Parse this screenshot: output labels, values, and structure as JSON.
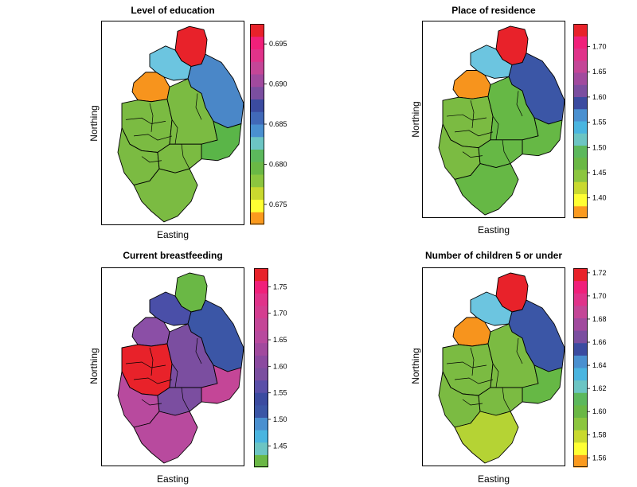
{
  "panels": [
    {
      "title": "Level of education",
      "xlabel": "Easting",
      "ylabel": "Northing",
      "legend": {
        "min": 0.6725,
        "max": 0.6975,
        "ticks": [
          "0.675",
          "0.680",
          "0.685",
          "0.690",
          "0.695"
        ],
        "tick_values": [
          0.675,
          0.68,
          0.685,
          0.69,
          0.695
        ],
        "colors": [
          "#fb9a1e",
          "#ffff33",
          "#c9d92f",
          "#8cc63f",
          "#6ab845",
          "#5cb85c",
          "#6cc5c3",
          "#4a90d0",
          "#4169b8",
          "#3b4ba0",
          "#7b4ea0",
          "#a14a9e",
          "#c44697",
          "#e0338a",
          "#f0207a",
          "#e8222a"
        ]
      },
      "regions": {
        "north": "#e8222a",
        "northwest": "#6cc5e0",
        "west": "#f7941d",
        "east": "#4a87c8",
        "central": "#7bbb42",
        "center_south": "#7bbb42",
        "south": "#7bbb42",
        "southwest": "#7bbb42",
        "southeast": "#5ab548",
        "mid": "#7bbb42"
      }
    },
    {
      "title": "Place of residence",
      "xlabel": "Easting",
      "ylabel": "Northing",
      "legend": {
        "min": 1.36,
        "max": 1.745,
        "ticks": [
          "1.40",
          "1.45",
          "1.50",
          "1.55",
          "1.60",
          "1.65",
          "1.70"
        ],
        "tick_values": [
          1.4,
          1.45,
          1.5,
          1.55,
          1.6,
          1.65,
          1.7
        ],
        "colors": [
          "#fb9a1e",
          "#ffff33",
          "#c9d92f",
          "#8cc63f",
          "#6ab845",
          "#5cb85c",
          "#6cc5c3",
          "#4ab5e0",
          "#4a90d0",
          "#3b4ba0",
          "#7b4ea0",
          "#a14a9e",
          "#c44697",
          "#e0338a",
          "#f0207a",
          "#e8222a"
        ]
      },
      "regions": {
        "north": "#e8222a",
        "northwest": "#6cc5e0",
        "west": "#f7941d",
        "east": "#3b56a6",
        "central": "#7bbb42",
        "center_south": "#66b845",
        "south": "#66b845",
        "southwest": "#7bbb42",
        "southeast": "#66b845",
        "mid": "#66b845"
      }
    },
    {
      "title": "Current breastfeeding",
      "xlabel": "Easting",
      "ylabel": "Northing",
      "legend": {
        "min": 1.41,
        "max": 1.785,
        "ticks": [
          "1.45",
          "1.50",
          "1.55",
          "1.60",
          "1.65",
          "1.70",
          "1.75"
        ],
        "tick_values": [
          1.45,
          1.5,
          1.55,
          1.6,
          1.65,
          1.7,
          1.75
        ],
        "colors": [
          "#6ab845",
          "#6cc5c3",
          "#4ab5e0",
          "#4a90d0",
          "#3b56a6",
          "#3b4ba0",
          "#5a4fa8",
          "#7b4ea0",
          "#8b4aa0",
          "#a14a9e",
          "#b84a9e",
          "#c44697",
          "#d43d90",
          "#e0338a",
          "#f0207a",
          "#e8222a"
        ]
      },
      "regions": {
        "north": "#6ab845",
        "northwest": "#4a4fa8",
        "west": "#8b4fa6",
        "east": "#3b56a6",
        "central": "#e8222a",
        "center_south": "#7b4ea0",
        "south": "#b84a9e",
        "southwest": "#b84a9e",
        "southeast": "#c44697",
        "mid": "#7b4ea0"
      }
    },
    {
      "title": "Number of children 5 or under",
      "xlabel": "Easting",
      "ylabel": "Northing",
      "legend": {
        "min": 1.552,
        "max": 1.724,
        "ticks": [
          "1.56",
          "1.58",
          "1.60",
          "1.62",
          "1.64",
          "1.66",
          "1.68",
          "1.70",
          "1.72"
        ],
        "tick_values": [
          1.56,
          1.58,
          1.6,
          1.62,
          1.64,
          1.66,
          1.68,
          1.7,
          1.72
        ],
        "colors": [
          "#fb9a1e",
          "#ffff33",
          "#c9d92f",
          "#8cc63f",
          "#6ab845",
          "#5cb85c",
          "#6cc5c3",
          "#4ab5e0",
          "#4a90d0",
          "#3b4ba0",
          "#7b4ea0",
          "#a14a9e",
          "#c44697",
          "#e0338a",
          "#f0207a",
          "#e8222a"
        ]
      },
      "regions": {
        "north": "#e8222a",
        "northwest": "#6cc5e0",
        "west": "#f7941d",
        "east": "#3b56a6",
        "central": "#7bbb42",
        "center_south": "#7bbb42",
        "south": "#b5d334",
        "southwest": "#7bbb42",
        "southeast": "#66b845",
        "mid": "#7bbb42"
      }
    }
  ]
}
